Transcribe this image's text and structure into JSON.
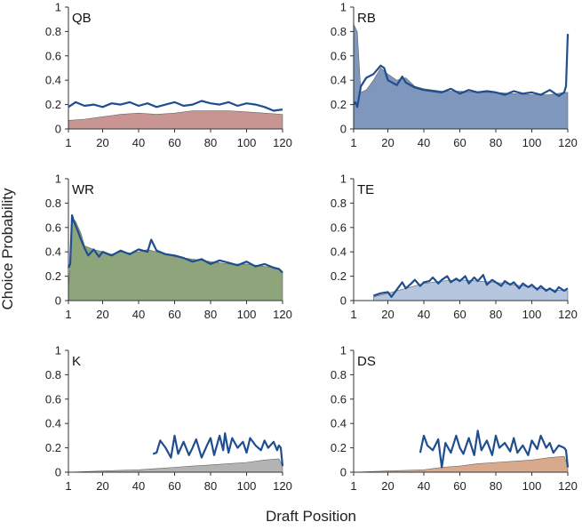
{
  "figure": {
    "xlabel": "Draft Position",
    "ylabel": "Choice Probability"
  },
  "styles": {
    "line_color": "#1f4e8f",
    "axis_color": "#333333"
  },
  "chart_data": [
    {
      "type": "area",
      "title": "QB",
      "fill_color": "#c99593",
      "xlim": [
        1,
        120
      ],
      "ylim": [
        0,
        1
      ],
      "xticks": [
        1,
        20,
        40,
        60,
        80,
        100,
        120
      ],
      "yticks": [
        0,
        0.2,
        0.4,
        0.6,
        0.8,
        1
      ],
      "series": [
        {
          "role": "area",
          "x": [
            1,
            10,
            20,
            30,
            40,
            50,
            60,
            70,
            80,
            90,
            100,
            110,
            120
          ],
          "y": [
            0.07,
            0.08,
            0.1,
            0.12,
            0.13,
            0.12,
            0.13,
            0.15,
            0.15,
            0.15,
            0.14,
            0.13,
            0.12
          ]
        },
        {
          "role": "line",
          "x": [
            1,
            5,
            10,
            15,
            20,
            25,
            30,
            35,
            40,
            45,
            50,
            55,
            60,
            65,
            70,
            75,
            80,
            85,
            90,
            95,
            100,
            105,
            110,
            115,
            120
          ],
          "y": [
            0.18,
            0.22,
            0.19,
            0.2,
            0.18,
            0.21,
            0.2,
            0.22,
            0.19,
            0.21,
            0.18,
            0.2,
            0.22,
            0.19,
            0.2,
            0.23,
            0.21,
            0.2,
            0.22,
            0.19,
            0.21,
            0.2,
            0.18,
            0.15,
            0.16
          ]
        }
      ]
    },
    {
      "type": "area",
      "title": "RB",
      "fill_color": "#7f96bd",
      "xlim": [
        1,
        120
      ],
      "ylim": [
        0,
        1
      ],
      "xticks": [
        1,
        20,
        40,
        60,
        80,
        100,
        120
      ],
      "yticks": [
        0,
        0.2,
        0.4,
        0.6,
        0.8,
        1
      ],
      "series": [
        {
          "role": "area",
          "x": [
            1,
            3,
            5,
            8,
            12,
            16,
            20,
            25,
            30,
            35,
            40,
            50,
            60,
            70,
            80,
            90,
            100,
            110,
            118,
            119,
            120
          ],
          "y": [
            0.86,
            0.8,
            0.3,
            0.32,
            0.4,
            0.5,
            0.45,
            0.4,
            0.42,
            0.35,
            0.33,
            0.31,
            0.31,
            0.3,
            0.3,
            0.29,
            0.28,
            0.28,
            0.3,
            0.3,
            0.3
          ]
        },
        {
          "role": "line",
          "x": [
            1,
            2,
            3,
            5,
            8,
            12,
            16,
            18,
            20,
            25,
            28,
            30,
            35,
            40,
            45,
            50,
            55,
            60,
            65,
            70,
            75,
            80,
            85,
            90,
            95,
            100,
            105,
            110,
            115,
            118,
            119,
            120
          ],
          "y": [
            0.2,
            0.22,
            0.18,
            0.35,
            0.42,
            0.45,
            0.52,
            0.5,
            0.4,
            0.36,
            0.43,
            0.38,
            0.34,
            0.32,
            0.31,
            0.3,
            0.33,
            0.29,
            0.32,
            0.3,
            0.31,
            0.3,
            0.28,
            0.31,
            0.29,
            0.3,
            0.28,
            0.32,
            0.27,
            0.3,
            0.35,
            0.78
          ]
        }
      ]
    },
    {
      "type": "area",
      "title": "WR",
      "fill_color": "#8ea57b",
      "xlim": [
        1,
        120
      ],
      "ylim": [
        0,
        1
      ],
      "xticks": [
        1,
        20,
        40,
        60,
        80,
        100,
        120
      ],
      "yticks": [
        0,
        0.2,
        0.4,
        0.6,
        0.8,
        1
      ],
      "series": [
        {
          "role": "area",
          "x": [
            1,
            2,
            3,
            5,
            8,
            10,
            15,
            20,
            25,
            30,
            35,
            40,
            45,
            50,
            55,
            60,
            70,
            80,
            90,
            100,
            110,
            115,
            120
          ],
          "y": [
            0.1,
            0.3,
            0.68,
            0.65,
            0.55,
            0.45,
            0.42,
            0.4,
            0.38,
            0.4,
            0.39,
            0.4,
            0.42,
            0.4,
            0.38,
            0.36,
            0.34,
            0.32,
            0.3,
            0.3,
            0.28,
            0.27,
            0.24
          ]
        },
        {
          "role": "line",
          "x": [
            1,
            2,
            3,
            4,
            6,
            8,
            10,
            12,
            15,
            18,
            20,
            25,
            30,
            35,
            40,
            45,
            47,
            50,
            55,
            60,
            65,
            70,
            75,
            80,
            85,
            90,
            95,
            100,
            105,
            110,
            115,
            118,
            120
          ],
          "y": [
            0.27,
            0.3,
            0.7,
            0.65,
            0.58,
            0.5,
            0.43,
            0.37,
            0.42,
            0.36,
            0.4,
            0.37,
            0.41,
            0.38,
            0.42,
            0.4,
            0.5,
            0.41,
            0.38,
            0.37,
            0.35,
            0.32,
            0.34,
            0.3,
            0.33,
            0.31,
            0.29,
            0.32,
            0.28,
            0.3,
            0.27,
            0.26,
            0.23
          ]
        }
      ]
    },
    {
      "type": "area",
      "title": "TE",
      "fill_color": "#b6c6de",
      "xlim": [
        1,
        120
      ],
      "ylim": [
        0,
        1
      ],
      "xticks": [
        1,
        20,
        40,
        60,
        80,
        100,
        120
      ],
      "yticks": [
        0,
        0.2,
        0.4,
        0.6,
        0.8,
        1
      ],
      "series": [
        {
          "role": "area",
          "x": [
            12,
            20,
            30,
            40,
            50,
            60,
            70,
            80,
            90,
            100,
            110,
            120
          ],
          "y": [
            0.03,
            0.06,
            0.1,
            0.14,
            0.16,
            0.17,
            0.16,
            0.15,
            0.13,
            0.11,
            0.09,
            0.08
          ]
        },
        {
          "role": "line",
          "x": [
            12,
            16,
            20,
            22,
            25,
            28,
            30,
            33,
            35,
            38,
            40,
            43,
            45,
            48,
            50,
            53,
            55,
            58,
            60,
            63,
            65,
            68,
            70,
            73,
            75,
            78,
            80,
            83,
            85,
            88,
            90,
            93,
            95,
            98,
            100,
            103,
            105,
            108,
            110,
            113,
            115,
            118,
            120
          ],
          "y": [
            0.04,
            0.06,
            0.07,
            0.03,
            0.09,
            0.15,
            0.1,
            0.14,
            0.17,
            0.12,
            0.15,
            0.16,
            0.19,
            0.14,
            0.17,
            0.2,
            0.15,
            0.18,
            0.16,
            0.2,
            0.14,
            0.19,
            0.16,
            0.21,
            0.13,
            0.17,
            0.15,
            0.12,
            0.16,
            0.13,
            0.15,
            0.1,
            0.14,
            0.11,
            0.13,
            0.09,
            0.12,
            0.08,
            0.1,
            0.07,
            0.11,
            0.08,
            0.1
          ]
        }
      ]
    },
    {
      "type": "area",
      "title": "K",
      "fill_color": "#b3b3b3",
      "xlim": [
        1,
        120
      ],
      "ylim": [
        0,
        1
      ],
      "xticks": [
        1,
        20,
        40,
        60,
        80,
        100,
        120
      ],
      "yticks": [
        0,
        0.2,
        0.4,
        0.6,
        0.8,
        1
      ],
      "series": [
        {
          "role": "area",
          "x": [
            1,
            20,
            40,
            50,
            60,
            70,
            80,
            90,
            100,
            110,
            118,
            120
          ],
          "y": [
            0.0,
            0.01,
            0.02,
            0.03,
            0.04,
            0.05,
            0.06,
            0.07,
            0.08,
            0.1,
            0.11,
            0.05
          ]
        },
        {
          "role": "line",
          "x": [
            48,
            50,
            52,
            55,
            58,
            60,
            62,
            65,
            68,
            70,
            72,
            75,
            78,
            80,
            82,
            85,
            87,
            88,
            90,
            92,
            95,
            98,
            100,
            102,
            105,
            108,
            110,
            112,
            115,
            117,
            118,
            119,
            120
          ],
          "y": [
            0.15,
            0.16,
            0.26,
            0.2,
            0.12,
            0.3,
            0.15,
            0.25,
            0.14,
            0.2,
            0.27,
            0.12,
            0.22,
            0.28,
            0.14,
            0.3,
            0.18,
            0.32,
            0.16,
            0.28,
            0.2,
            0.25,
            0.16,
            0.28,
            0.22,
            0.18,
            0.26,
            0.2,
            0.25,
            0.18,
            0.22,
            0.2,
            0.05
          ]
        }
      ]
    },
    {
      "type": "area",
      "title": "DS",
      "fill_color": "#d9a98c",
      "xlim": [
        1,
        120
      ],
      "ylim": [
        0,
        1
      ],
      "xticks": [
        1,
        20,
        40,
        60,
        80,
        100,
        120
      ],
      "yticks": [
        0,
        0.2,
        0.4,
        0.6,
        0.8,
        1
      ],
      "series": [
        {
          "role": "area",
          "x": [
            1,
            20,
            40,
            50,
            60,
            70,
            80,
            90,
            100,
            110,
            118,
            120
          ],
          "y": [
            0.0,
            0.01,
            0.02,
            0.04,
            0.05,
            0.07,
            0.08,
            0.09,
            0.1,
            0.12,
            0.13,
            0.05
          ]
        },
        {
          "role": "line",
          "x": [
            38,
            40,
            42,
            45,
            48,
            50,
            52,
            55,
            58,
            60,
            62,
            65,
            68,
            70,
            72,
            75,
            78,
            80,
            82,
            85,
            88,
            90,
            92,
            95,
            98,
            100,
            103,
            105,
            108,
            110,
            112,
            115,
            118,
            119,
            120
          ],
          "y": [
            0.16,
            0.3,
            0.22,
            0.18,
            0.27,
            0.04,
            0.24,
            0.16,
            0.3,
            0.2,
            0.15,
            0.28,
            0.14,
            0.34,
            0.18,
            0.26,
            0.14,
            0.3,
            0.2,
            0.24,
            0.17,
            0.28,
            0.16,
            0.22,
            0.14,
            0.26,
            0.19,
            0.3,
            0.2,
            0.24,
            0.16,
            0.22,
            0.2,
            0.18,
            0.04
          ]
        }
      ]
    }
  ]
}
